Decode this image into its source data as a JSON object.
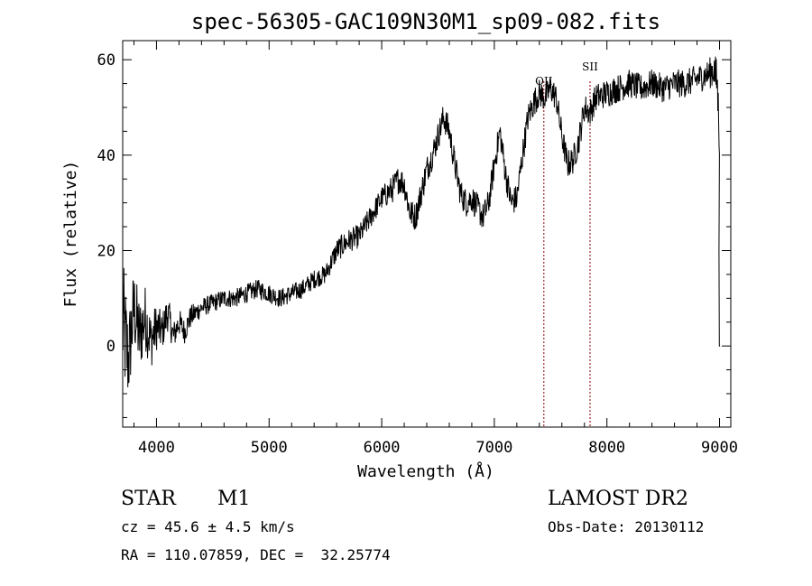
{
  "chart_data": {
    "type": "line",
    "title": "spec-56305-GAC109N30M1_sp09-082.fits",
    "xlabel": "Wavelength (Å)",
    "ylabel": "Flux (relative)",
    "xlim": [
      3700,
      9100
    ],
    "ylim": [
      -17,
      64
    ],
    "xticks": [
      4000,
      5000,
      6000,
      7000,
      8000,
      9000
    ],
    "yticks": [
      0,
      20,
      40,
      60
    ],
    "grid": false,
    "series": [
      {
        "x": [
          3700,
          3750,
          3800,
          3850,
          3900,
          3950,
          4000,
          4050,
          4100,
          4150,
          4200,
          4250,
          4300,
          4400,
          4500,
          4600,
          4700,
          4800,
          4900,
          5000,
          5100,
          5200,
          5300,
          5400,
          5500,
          5600,
          5700,
          5800,
          5900,
          6000,
          6100,
          6150,
          6200,
          6250,
          6300,
          6400,
          6450,
          6500,
          6550,
          6600,
          6650,
          6700,
          6750,
          6800,
          6850,
          6900,
          6950,
          7000,
          7050,
          7100,
          7150,
          7200,
          7250,
          7300,
          7350,
          7400,
          7450,
          7500,
          7550,
          7600,
          7650,
          7700,
          7750,
          7800,
          7850,
          7900,
          8000,
          8100,
          8200,
          8300,
          8400,
          8500,
          8600,
          8700,
          8800,
          8900,
          8950,
          8980,
          9000
        ],
        "y": [
          5,
          -3,
          8,
          2,
          6,
          1,
          4,
          3,
          7,
          2,
          5,
          3,
          6,
          8,
          9,
          10,
          10,
          11,
          12,
          11,
          10,
          11,
          12,
          14,
          15,
          20,
          22,
          23,
          27,
          31,
          33,
          35,
          34,
          28,
          27,
          37,
          40,
          44,
          48,
          45,
          38,
          32,
          30,
          31,
          29,
          27,
          30,
          38,
          45,
          36,
          30,
          31,
          40,
          48,
          51,
          53,
          52,
          54,
          52,
          44,
          38,
          39,
          43,
          50,
          49,
          52,
          53,
          54,
          55,
          54,
          55,
          54,
          55,
          55,
          56,
          57,
          58,
          55,
          43
        ],
        "noise": [
          14,
          10,
          9,
          8,
          7,
          6,
          5,
          4,
          4,
          3,
          3,
          2.5,
          2.5,
          2,
          2,
          2,
          2,
          2,
          2,
          2,
          2,
          2,
          2,
          2,
          2,
          2.5,
          2.5,
          2.5,
          2.5,
          2.5,
          3,
          3,
          3,
          3,
          3,
          3,
          3,
          3,
          3,
          3,
          3,
          3,
          3,
          3,
          3,
          3,
          3,
          3,
          3,
          3,
          3,
          3,
          3,
          3,
          3,
          3,
          3,
          3,
          3,
          3,
          3,
          3,
          3,
          3,
          3,
          3,
          3,
          3,
          3,
          3,
          3,
          3,
          3,
          3,
          3,
          3,
          4,
          5,
          5
        ]
      }
    ],
    "lines": [
      {
        "label": "OII",
        "x": 7440,
        "color": "#8b0000"
      },
      {
        "label": "SII",
        "x": 7850,
        "color": "#8b0000"
      }
    ]
  },
  "info": {
    "class": "STAR",
    "subclass": "M1",
    "survey": "LAMOST DR2",
    "cz": "cz = 45.6 ± 4.5 km/s",
    "obsdate": "Obs-Date: 20130112",
    "radec": "RA = 110.07859, DEC =  32.25774"
  }
}
